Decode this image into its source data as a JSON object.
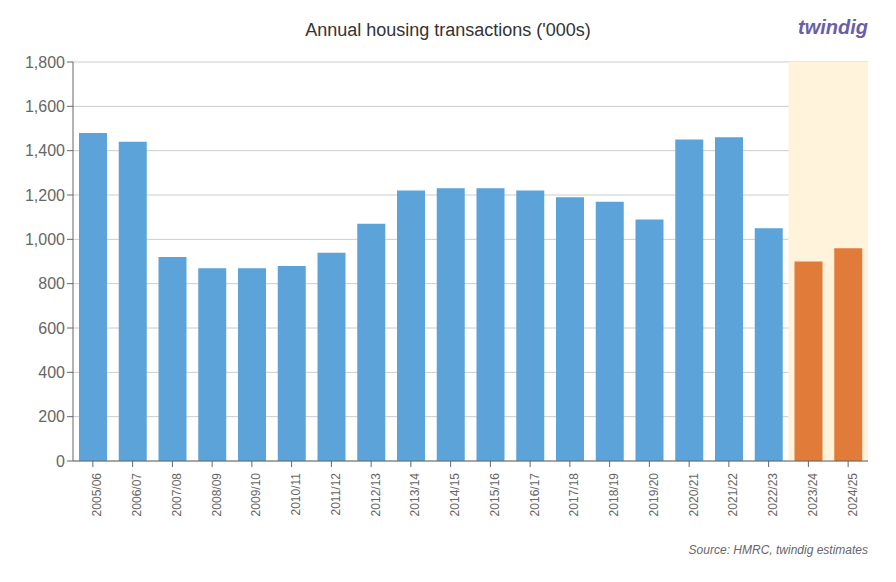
{
  "chart_data": {
    "type": "bar",
    "title": "Annual housing transactions ('000s)",
    "categories": [
      "2005/06",
      "2006/07",
      "2007/08",
      "2008/09",
      "2009/10",
      "2010/11",
      "2011/12",
      "2012/13",
      "2013/14",
      "2014/15",
      "2015/16",
      "2016/17",
      "2017/18",
      "2018/19",
      "2019/20",
      "2020/21",
      "2021/22",
      "2022/23",
      "2023/24",
      "2024/25"
    ],
    "values": [
      1480,
      1440,
      920,
      870,
      870,
      880,
      940,
      1070,
      1220,
      1230,
      1230,
      1220,
      1190,
      1170,
      1090,
      1450,
      1460,
      1050,
      900,
      960
    ],
    "colors": [
      "#5BA3D9",
      "#5BA3D9",
      "#5BA3D9",
      "#5BA3D9",
      "#5BA3D9",
      "#5BA3D9",
      "#5BA3D9",
      "#5BA3D9",
      "#5BA3D9",
      "#5BA3D9",
      "#5BA3D9",
      "#5BA3D9",
      "#5BA3D9",
      "#5BA3D9",
      "#5BA3D9",
      "#5BA3D9",
      "#5BA3D9",
      "#5BA3D9",
      "#E07B39",
      "#E07B39"
    ],
    "ylim": [
      0,
      1800
    ],
    "yticks": [
      0,
      200,
      400,
      600,
      800,
      {
        "value": 1000,
        "label": "1,000"
      },
      {
        "value": 1200,
        "label": "1,200"
      },
      {
        "value": 1400,
        "label": "1,400"
      },
      {
        "value": 1600,
        "label": "1,600"
      },
      {
        "value": 1800,
        "label": "1,800"
      }
    ],
    "grid": true,
    "annotations": [
      {
        "type": "span",
        "x_start": "2023/24",
        "x_end": "2024/25",
        "color": "#FFF3DC"
      },
      {
        "type": "text",
        "text": "twindig",
        "color": "#6B5EA8"
      },
      {
        "type": "text",
        "text": "Source: HMRC, twindig estimates"
      }
    ]
  }
}
